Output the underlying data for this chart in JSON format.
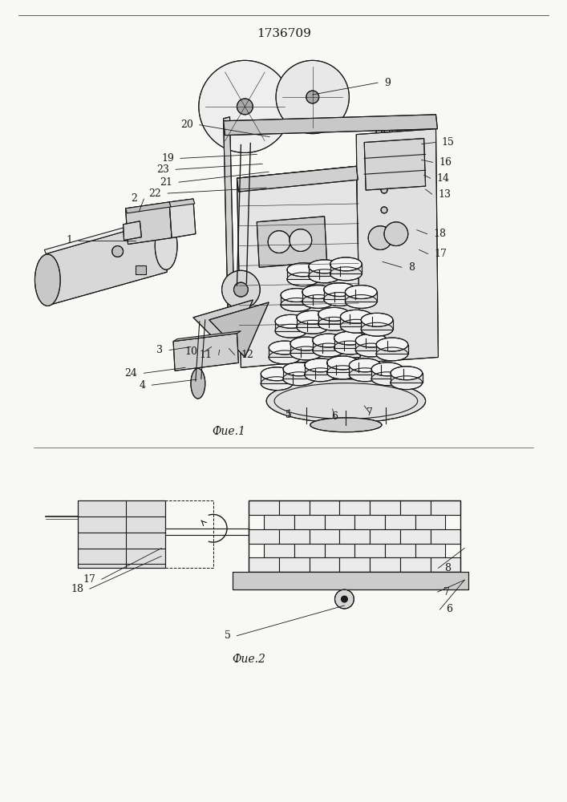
{
  "title": "1736709",
  "fig1_caption": "Фие.1",
  "fig2_caption": "Фие.2",
  "background_color": "#f8f8f5",
  "line_color": "#1a1a1a",
  "title_fontsize": 11,
  "caption_fontsize": 10,
  "label_fontsize": 9
}
